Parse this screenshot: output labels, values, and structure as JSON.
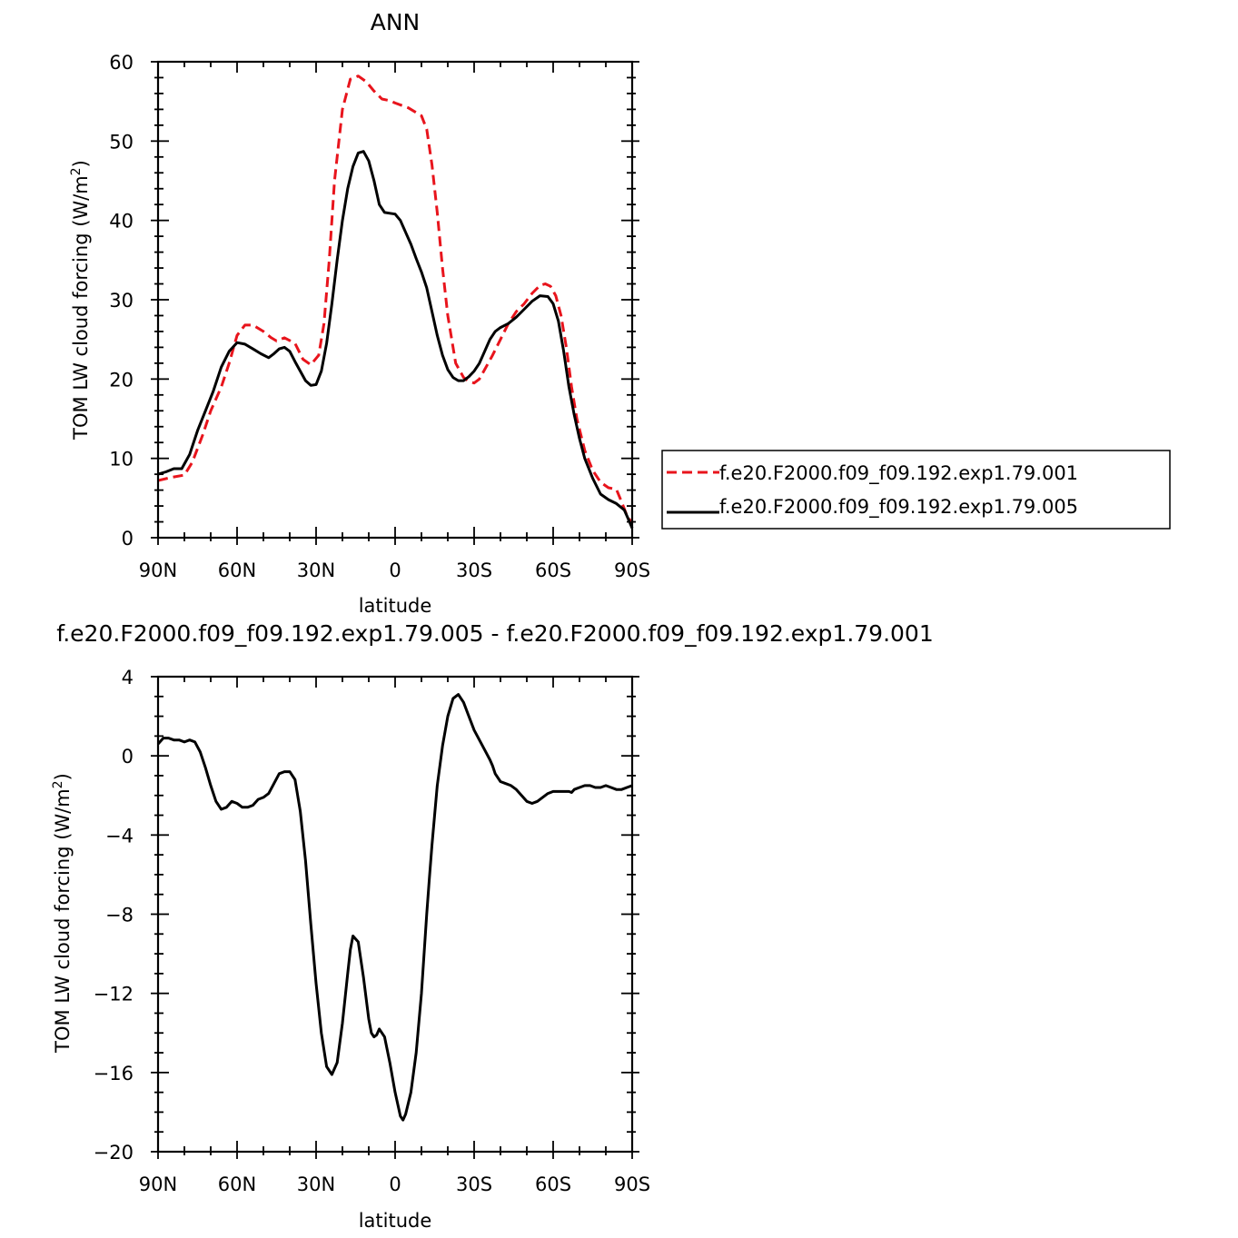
{
  "colors": {
    "series_red": "#e8141c",
    "series_black": "#000000",
    "axes": "#000000",
    "background": "#ffffff"
  },
  "chart_data": [
    {
      "type": "line",
      "title": "ANN",
      "xlabel": "latitude",
      "ylabel": "TOM LW cloud forcing (W/m²)",
      "ylabel_base": "TOM LW cloud forcing (W/m",
      "ylabel_sup": "2",
      "ylabel_tail": ")",
      "xlim": [
        90,
        -90
      ],
      "ylim": [
        0,
        60
      ],
      "xticks": [
        90,
        60,
        30,
        0,
        -30,
        -60,
        -90
      ],
      "xtick_labels": [
        "90N",
        "60N",
        "30N",
        "0",
        "30S",
        "60S",
        "90S"
      ],
      "yticks": [
        0,
        10,
        20,
        30,
        40,
        50,
        60
      ],
      "ytick_labels": [
        "0",
        "10",
        "20",
        "30",
        "40",
        "50",
        "60"
      ],
      "grid": false,
      "legend_position": "right",
      "series": [
        {
          "name": "f.e20.F2000.f09_f09.192.exp1.79.001",
          "color": "#e8141c",
          "dash": "dashed",
          "x": [
            90,
            85,
            80,
            77,
            73,
            70,
            66,
            63,
            60,
            57,
            54,
            50,
            47,
            45,
            42,
            38,
            35,
            32,
            29,
            27,
            25,
            23,
            20,
            17,
            14,
            11,
            8,
            5,
            2,
            0,
            -5,
            -10,
            -12,
            -14,
            -16,
            -18,
            -20,
            -23,
            -26,
            -28,
            -30,
            -32,
            -34,
            -37,
            -40,
            -43,
            -46,
            -49,
            -52,
            -55,
            -57,
            -59,
            -61,
            -63,
            -65,
            -67,
            -69,
            -72,
            -75,
            -78,
            -81,
            -84,
            -86,
            -88,
            -90
          ],
          "y": [
            7.2,
            7.6,
            7.9,
            9.5,
            13,
            16,
            19,
            22,
            25.5,
            26.8,
            26.8,
            26,
            25.2,
            24.8,
            25.2,
            24.5,
            22.5,
            21.8,
            23,
            27,
            35,
            45,
            54,
            57.8,
            58.2,
            57.5,
            56.3,
            55.3,
            55.1,
            54.8,
            54.2,
            53.2,
            51.5,
            47,
            41,
            34,
            28,
            22,
            20.2,
            19.7,
            19.5,
            20,
            21.2,
            23,
            25,
            27,
            28.5,
            29.5,
            30.8,
            31.8,
            32,
            31.7,
            30.5,
            28,
            24,
            19,
            15,
            11,
            8.5,
            7,
            6.3,
            6.1,
            4.5,
            2.8,
            1.8
          ]
        },
        {
          "name": "f.e20.F2000.f09_f09.192.exp1.79.005",
          "color": "#000000",
          "dash": "solid",
          "x": [
            90,
            87,
            84,
            81,
            78,
            75,
            72,
            69,
            66,
            63,
            60,
            57,
            54,
            51,
            48,
            46,
            44,
            42,
            40,
            38,
            36,
            34,
            32,
            30,
            28,
            26,
            24,
            22,
            20,
            18,
            16,
            14,
            12,
            10,
            8,
            7,
            6,
            4,
            2,
            0,
            -2,
            -4,
            -6,
            -8,
            -10,
            -12,
            -14,
            -16,
            -18,
            -20,
            -22,
            -24,
            -26,
            -28,
            -30,
            -32,
            -34,
            -36,
            -38,
            -40,
            -43,
            -46,
            -49,
            -52,
            -55,
            -58,
            -60,
            -62,
            -64,
            -66,
            -68,
            -70,
            -72,
            -75,
            -78,
            -81,
            -84,
            -87,
            -89,
            -90
          ],
          "y": [
            8,
            8.3,
            8.7,
            8.7,
            10.5,
            13.5,
            16,
            18.5,
            21.5,
            23.5,
            24.6,
            24.4,
            23.8,
            23.2,
            22.7,
            23.2,
            23.8,
            24,
            23.5,
            22.2,
            21,
            19.8,
            19.2,
            19.3,
            21,
            24.5,
            29.5,
            35,
            40,
            44,
            46.8,
            48.5,
            48.7,
            47.5,
            45,
            43.5,
            42,
            41,
            40.9,
            40.8,
            40,
            38.5,
            37,
            35.2,
            33.5,
            31.5,
            28.5,
            25.5,
            23,
            21.2,
            20.2,
            19.8,
            19.8,
            20.3,
            21,
            22,
            23.5,
            25,
            26,
            26.5,
            27,
            27.8,
            28.8,
            29.8,
            30.5,
            30.4,
            29.5,
            27.3,
            23.5,
            19,
            15.5,
            12.5,
            10,
            7.5,
            5.5,
            4.8,
            4.3,
            3.5,
            2,
            1.2
          ]
        }
      ]
    },
    {
      "type": "line",
      "title": "f.e20.F2000.f09_f09.192.exp1.79.005 - f.e20.F2000.f09_f09.192.exp1.79.001",
      "xlabel": "latitude",
      "ylabel": "TOM LW cloud forcing (W/m²)",
      "ylabel_base": "TOM LW cloud forcing (W/m",
      "ylabel_sup": "2",
      "ylabel_tail": ")",
      "xlim": [
        90,
        -90
      ],
      "ylim": [
        -20,
        4
      ],
      "xticks": [
        90,
        60,
        30,
        0,
        -30,
        -60,
        -90
      ],
      "xtick_labels": [
        "90N",
        "60N",
        "30N",
        "0",
        "30S",
        "60S",
        "90S"
      ],
      "yticks": [
        -20,
        -16,
        -12,
        -8,
        -4,
        0,
        4
      ],
      "ytick_labels": [
        "−20",
        "−16",
        "−12",
        "−8",
        "−4",
        "0",
        "4"
      ],
      "grid": false,
      "series": [
        {
          "color": "#000000",
          "dash": "solid",
          "x": [
            90,
            88,
            86,
            84,
            82,
            80,
            78,
            76,
            74,
            72,
            70,
            68,
            66,
            64,
            62,
            60,
            58,
            56,
            54,
            52,
            50,
            48,
            46,
            44,
            42,
            40,
            38,
            36,
            34,
            32,
            30,
            28,
            26,
            24,
            22,
            20,
            18,
            17,
            16,
            14,
            12,
            10,
            9,
            8,
            7,
            6,
            4,
            2,
            0,
            -2,
            -3,
            -4,
            -6,
            -8,
            -10,
            -12,
            -13,
            -14,
            -15,
            -16,
            -18,
            -20,
            -22,
            -24,
            -26,
            -28,
            -30,
            -32,
            -34,
            -36,
            -37,
            -38,
            -40,
            -42,
            -44,
            -46,
            -48,
            -50,
            -52,
            -54,
            -56,
            -58,
            -60,
            -62,
            -64,
            -66,
            -67,
            -68,
            -70,
            -72,
            -74,
            -76,
            -78,
            -80,
            -82,
            -84,
            -86,
            -88,
            -90
          ],
          "y": [
            0.6,
            0.9,
            0.9,
            0.8,
            0.8,
            0.7,
            0.8,
            0.7,
            0.2,
            -0.6,
            -1.5,
            -2.3,
            -2.7,
            -2.6,
            -2.3,
            -2.4,
            -2.6,
            -2.6,
            -2.5,
            -2.2,
            -2.1,
            -1.9,
            -1.4,
            -0.9,
            -0.8,
            -0.8,
            -1.2,
            -2.8,
            -5.3,
            -8.5,
            -11.5,
            -14,
            -15.7,
            -16.1,
            -15.5,
            -13.5,
            -11,
            -9.8,
            -9.1,
            -9.4,
            -11.2,
            -13.3,
            -14,
            -14.2,
            -14.1,
            -13.8,
            -14.2,
            -15.5,
            -17,
            -18.2,
            -18.4,
            -18.1,
            -17,
            -15,
            -12,
            -8,
            -6.2,
            -4.5,
            -3,
            -1.5,
            0.5,
            2,
            2.9,
            3.1,
            2.7,
            2,
            1.3,
            0.8,
            0.3,
            -0.2,
            -0.5,
            -0.9,
            -1.3,
            -1.4,
            -1.5,
            -1.7,
            -2,
            -2.3,
            -2.4,
            -2.3,
            -2.1,
            -1.9,
            -1.8,
            -1.8,
            -1.8,
            -1.8,
            -1.85,
            -1.7,
            -1.6,
            -1.5,
            -1.5,
            -1.6,
            -1.6,
            -1.5,
            -1.6,
            -1.7,
            -1.7,
            -1.6,
            -1.5
          ]
        }
      ]
    }
  ]
}
